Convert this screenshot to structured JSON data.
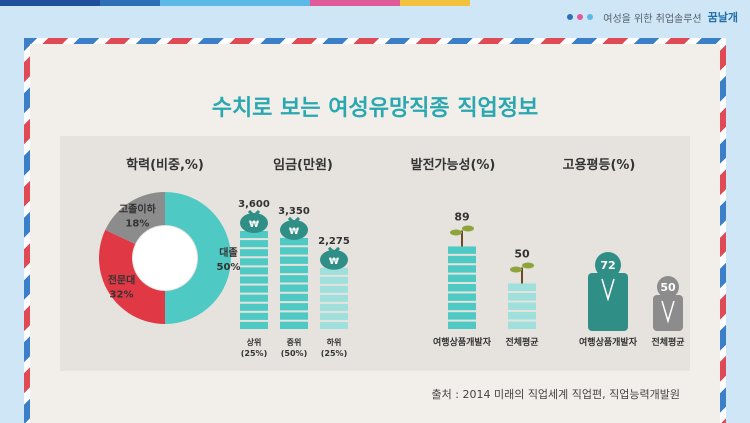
{
  "brand": {
    "tagline": "여성을 위한 취업솔루션",
    "name": "꿈날개",
    "dot_colors": [
      "#2f6fb8",
      "#e05a9a",
      "#5cb8e6"
    ]
  },
  "top_stripe_colors": [
    "#1f4e9c",
    "#2f6fb8",
    "#5cb8e6",
    "#e05a9a",
    "#f3c23d"
  ],
  "title": "수치로 보는 여성유망직종 직업정보",
  "source": "출처 : 2014 미래의 직업세계 직업편, 직업능력개발원",
  "colors": {
    "teal": "#4fc9c3",
    "teal_dark": "#2f8f86",
    "red": "#e03844",
    "gray": "#8c8c8c",
    "light_teal": "#9fe0dc",
    "olive": "#8ea33b"
  },
  "chart_data": [
    {
      "type": "pie",
      "title": "학력(비중,%)",
      "slices": [
        {
          "label": "대졸",
          "value": 50
        },
        {
          "label": "전문대",
          "value": 32
        },
        {
          "label": "고졸이하",
          "value": 18
        }
      ]
    },
    {
      "type": "bar",
      "title": "임금(만원)",
      "categories": [
        "상위\n(25%)",
        "중위\n(50%)",
        "하위\n(25%)"
      ],
      "values": [
        3600,
        3350,
        2275
      ],
      "value_labels": [
        "3,600",
        "3,350",
        "2,275"
      ]
    },
    {
      "type": "bar",
      "title": "발전가능성(%)",
      "categories": [
        "여행상품개발자",
        "전체평균"
      ],
      "values": [
        89,
        50
      ]
    },
    {
      "type": "bar",
      "title": "고용평등(%)",
      "categories": [
        "여행상품개발자",
        "전체평균"
      ],
      "values": [
        72,
        50
      ]
    }
  ]
}
